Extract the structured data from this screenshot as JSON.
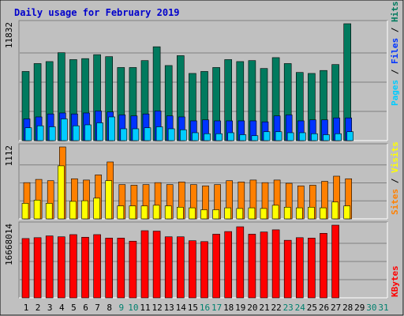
{
  "title": "Daily usage for February 2019",
  "colors": {
    "background": "#c0c0c0",
    "plot_bg": "#c0c0c0",
    "title": "#0000cc",
    "hits": "#007a5e",
    "files": "#0033ff",
    "pages": "#00ccff",
    "visits": "#ffff00",
    "sites": "#ff8000",
    "kbytes": "#ff0000",
    "weekday_label": "#000000",
    "weekend_label": "#00806e"
  },
  "legend": {
    "top": [
      "Pages",
      "Files",
      "Hits"
    ],
    "middle": [
      "Sites",
      "Visits"
    ],
    "bottom": [
      "KBytes"
    ]
  },
  "chart_data": [
    {
      "type": "bar",
      "name": "hits-files-pages",
      "ymax_label": "11832",
      "ylim": [
        0,
        11832
      ],
      "categories": [
        "1",
        "2",
        "3",
        "4",
        "5",
        "6",
        "7",
        "8",
        "9",
        "10",
        "11",
        "12",
        "13",
        "14",
        "15",
        "16",
        "17",
        "18",
        "19",
        "20",
        "21",
        "22",
        "23",
        "24",
        "25",
        "26",
        "27",
        "28",
        "29",
        "30",
        "31"
      ],
      "weekend": [
        "9",
        "10",
        "16",
        "17",
        "23",
        "24",
        "30",
        "31"
      ],
      "series": [
        {
          "name": "Hits",
          "values": [
            7000,
            7800,
            8000,
            8900,
            8200,
            8300,
            8700,
            8500,
            7400,
            7400,
            8100,
            9500,
            7600,
            8600,
            6800,
            7000,
            7400,
            8200,
            8000,
            8100,
            7300,
            8400,
            7800,
            6900,
            6800,
            7100,
            7700,
            11832,
            0,
            0,
            0
          ]
        },
        {
          "name": "Files",
          "values": [
            2200,
            2400,
            2700,
            2800,
            2700,
            2800,
            3000,
            2900,
            2600,
            2500,
            2700,
            3000,
            2500,
            2400,
            2000,
            2100,
            2000,
            2000,
            2000,
            2000,
            1900,
            2500,
            2600,
            2000,
            2100,
            2100,
            2300,
            2300,
            0,
            0,
            0
          ]
        },
        {
          "name": "Pages",
          "values": [
            1300,
            1500,
            1400,
            2200,
            1500,
            1600,
            1800,
            2400,
            1200,
            1200,
            1300,
            1400,
            1200,
            1100,
            800,
            700,
            700,
            800,
            600,
            500,
            900,
            900,
            800,
            800,
            700,
            600,
            700,
            900,
            0,
            0,
            0
          ]
        }
      ]
    },
    {
      "type": "bar",
      "name": "visits-sites",
      "ymax_label": "1112",
      "ylim": [
        0,
        1112
      ],
      "categories": [
        "1",
        "2",
        "3",
        "4",
        "5",
        "6",
        "7",
        "8",
        "9",
        "10",
        "11",
        "12",
        "13",
        "14",
        "15",
        "16",
        "17",
        "18",
        "19",
        "20",
        "21",
        "22",
        "23",
        "24",
        "25",
        "26",
        "27",
        "28",
        "29",
        "30",
        "31"
      ],
      "series": [
        {
          "name": "Sites",
          "values": [
            560,
            610,
            590,
            1112,
            620,
            600,
            680,
            880,
            530,
            520,
            530,
            560,
            530,
            570,
            530,
            510,
            530,
            590,
            570,
            600,
            560,
            600,
            550,
            510,
            520,
            580,
            660,
            620,
            0,
            0,
            0
          ]
        },
        {
          "name": "Visits",
          "values": [
            240,
            290,
            240,
            820,
            270,
            280,
            320,
            590,
            200,
            200,
            200,
            210,
            200,
            180,
            170,
            140,
            140,
            170,
            160,
            170,
            160,
            210,
            180,
            170,
            180,
            170,
            260,
            200,
            0,
            0,
            0
          ]
        }
      ]
    },
    {
      "type": "bar",
      "name": "kbytes",
      "ymax_label": "16668014",
      "ylim": [
        0,
        16668014
      ],
      "categories": [
        "1",
        "2",
        "3",
        "4",
        "5",
        "6",
        "7",
        "8",
        "9",
        "10",
        "11",
        "12",
        "13",
        "14",
        "15",
        "16",
        "17",
        "18",
        "19",
        "20",
        "21",
        "22",
        "23",
        "24",
        "25",
        "26",
        "27",
        "28",
        "29",
        "30",
        "31"
      ],
      "series": [
        {
          "name": "KBytes",
          "values": [
            13600000,
            13800000,
            14200000,
            14000000,
            14500000,
            13900000,
            14500000,
            13700000,
            13700000,
            13000000,
            15400000,
            15300000,
            14000000,
            14000000,
            13100000,
            12900000,
            14600000,
            15200000,
            16300000,
            14600000,
            15100000,
            15600000,
            13200000,
            13800000,
            13700000,
            14800000,
            16668014,
            0,
            0,
            0,
            0
          ]
        }
      ]
    }
  ]
}
